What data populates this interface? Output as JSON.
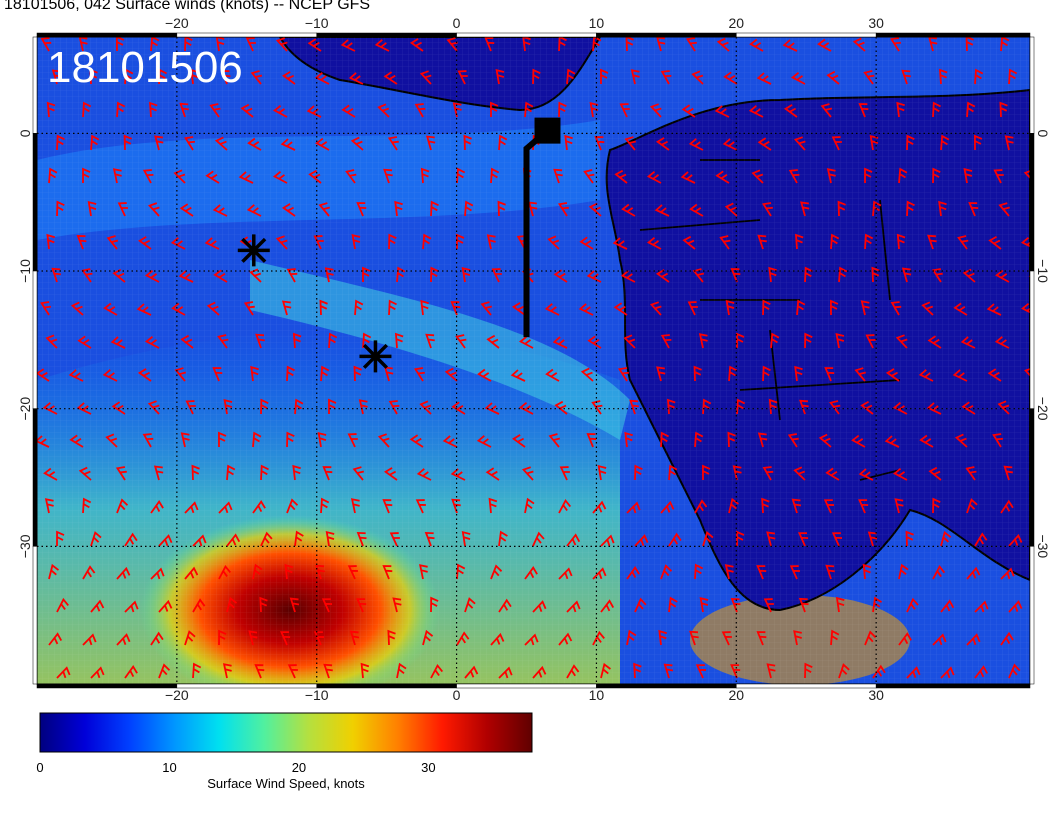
{
  "title": "18101506, 042 Surface winds (knots) -- NCEP GFS",
  "stamp": "18101506",
  "axes": {
    "lon_ticks": [
      "-20",
      "-10",
      "0",
      "10",
      "20",
      "30"
    ],
    "lat_ticks": [
      "0",
      "-10",
      "-20",
      "-30"
    ]
  },
  "colorbar": {
    "label": "Surface Wind Speed, knots",
    "ticks": [
      "0",
      "10",
      "20",
      "30"
    ],
    "range": [
      0,
      38
    ],
    "colors": [
      "#00007f",
      "#0000d8",
      "#0040ff",
      "#0096ff",
      "#00e0f0",
      "#50f0a0",
      "#b4e040",
      "#f0d000",
      "#ff8000",
      "#ff1a00",
      "#b00000",
      "#600000"
    ]
  },
  "map": {
    "lon_range": [
      -30,
      41
    ],
    "lat_range": [
      -40,
      7
    ],
    "barb_color": "#ff0000",
    "land_color": "#1010a0",
    "markers": [
      {
        "name": "asterisk",
        "lon": -14.5,
        "lat": -8.5
      },
      {
        "name": "asterisk",
        "lon": -5.8,
        "lat": -16.2
      }
    ],
    "track": {
      "start": {
        "lon": 5,
        "lat": -14.8
      },
      "end": {
        "lon": 6.5,
        "lat": 0.2
      }
    }
  }
}
